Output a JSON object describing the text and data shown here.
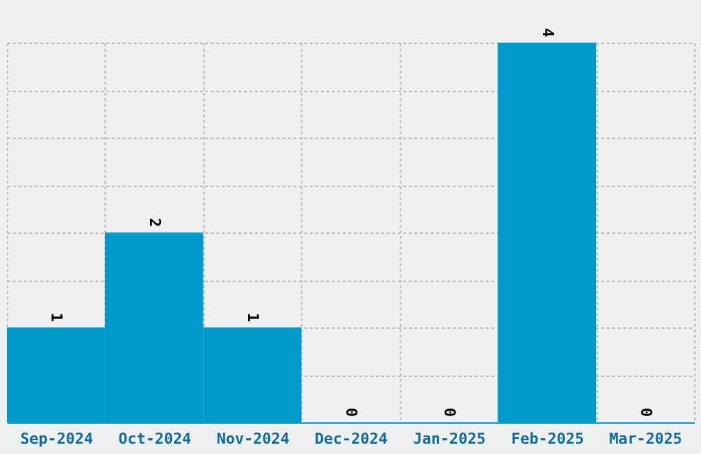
{
  "chart_data": {
    "type": "bar",
    "categories": [
      "Sep-2024",
      "Oct-2024",
      "Nov-2024",
      "Dec-2024",
      "Jan-2025",
      "Feb-2025",
      "Mar-2025"
    ],
    "values": [
      1,
      2,
      1,
      0,
      0,
      4,
      0
    ],
    "color": "#0099cc",
    "data_labels": true,
    "grid": true,
    "tick_labels": "x"
  }
}
